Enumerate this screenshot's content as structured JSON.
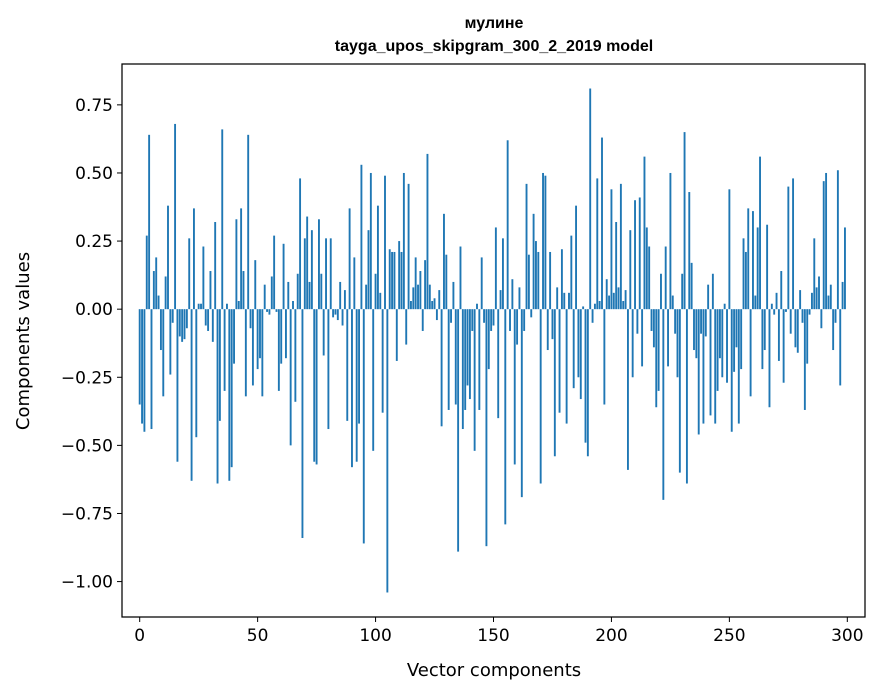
{
  "chart_data": {
    "type": "bar",
    "title": "мулине",
    "subtitle": "tayga_upos_skipgram_300_2_2019 model",
    "xlabel": "Vector components",
    "ylabel": "Components values",
    "xlim": [
      -7.5,
      307.5
    ],
    "ylim": [
      -1.13,
      0.9
    ],
    "x_ticks": [
      0,
      50,
      100,
      150,
      200,
      250,
      300
    ],
    "x_tick_labels": [
      "0",
      "50",
      "100",
      "150",
      "200",
      "250",
      "300"
    ],
    "y_ticks": [
      -1.0,
      -0.75,
      -0.5,
      -0.25,
      0.0,
      0.25,
      0.5,
      0.75
    ],
    "y_tick_labels": [
      "−1.00",
      "−0.75",
      "−0.50",
      "−0.25",
      "0.00",
      "0.25",
      "0.50",
      "0.75"
    ],
    "bar_color": "#1f77b4",
    "values": [
      -0.35,
      -0.42,
      -0.45,
      0.27,
      0.64,
      -0.44,
      0.14,
      0.19,
      0.05,
      -0.15,
      -0.32,
      0.12,
      0.38,
      -0.24,
      -0.05,
      0.68,
      -0.56,
      -0.1,
      -0.12,
      -0.11,
      -0.07,
      0.26,
      -0.63,
      0.37,
      -0.47,
      0.02,
      0.02,
      0.23,
      -0.06,
      -0.08,
      0.14,
      -0.12,
      0.32,
      -0.64,
      -0.41,
      0.66,
      -0.3,
      0.02,
      -0.63,
      -0.58,
      -0.2,
      0.33,
      0.03,
      0.37,
      0.14,
      -0.32,
      0.64,
      -0.07,
      -0.28,
      0.18,
      -0.22,
      -0.18,
      -0.32,
      0.09,
      -0.01,
      -0.02,
      0.12,
      0.27,
      -0.01,
      -0.3,
      -0.2,
      0.24,
      -0.18,
      0.1,
      -0.5,
      0.03,
      -0.34,
      0.13,
      0.48,
      -0.84,
      0.26,
      0.34,
      0.1,
      0.29,
      -0.56,
      -0.57,
      0.33,
      0.13,
      -0.17,
      0.26,
      -0.44,
      0.26,
      -0.03,
      -0.02,
      -0.04,
      0.1,
      -0.06,
      0.07,
      -0.41,
      0.37,
      -0.58,
      0.19,
      -0.56,
      -0.42,
      0.53,
      -0.86,
      0.09,
      0.29,
      0.5,
      -0.52,
      0.13,
      0.38,
      0.06,
      -0.38,
      0.49,
      -1.04,
      0.22,
      0.21,
      0.21,
      -0.19,
      0.25,
      0.21,
      0.5,
      -0.13,
      0.46,
      0.03,
      0.08,
      0.19,
      0.09,
      0.14,
      -0.08,
      0.18,
      0.57,
      0.09,
      0.03,
      0.04,
      -0.04,
      0.07,
      -0.43,
      0.35,
      0.2,
      -0.37,
      -0.05,
      0.1,
      -0.35,
      -0.89,
      0.23,
      -0.44,
      -0.37,
      -0.28,
      -0.33,
      -0.08,
      -0.52,
      0.02,
      -0.37,
      0.19,
      -0.05,
      -0.87,
      -0.22,
      -0.08,
      -0.06,
      0.3,
      -0.4,
      0.07,
      0.26,
      -0.79,
      0.62,
      -0.08,
      0.11,
      -0.57,
      -0.13,
      0.08,
      -0.69,
      -0.08,
      0.46,
      0.2,
      -0.03,
      0.35,
      0.25,
      0.21,
      -0.64,
      0.5,
      0.49,
      -0.15,
      0.21,
      -0.11,
      -0.54,
      0.08,
      -0.38,
      0.22,
      0.06,
      -0.42,
      0.06,
      0.27,
      -0.29,
      0.38,
      -0.25,
      -0.33,
      0.01,
      -0.49,
      -0.54,
      0.81,
      -0.05,
      0.02,
      0.48,
      0.03,
      0.63,
      -0.35,
      0.11,
      0.05,
      0.44,
      0.06,
      0.32,
      0.08,
      0.46,
      0.03,
      0.07,
      -0.59,
      0.29,
      -0.25,
      0.4,
      -0.09,
      0.41,
      -0.21,
      0.56,
      0.3,
      0.23,
      -0.08,
      -0.14,
      -0.36,
      -0.3,
      0.13,
      -0.7,
      0.23,
      -0.21,
      0.5,
      0.05,
      -0.09,
      -0.25,
      -0.6,
      0.13,
      0.65,
      -0.64,
      0.43,
      0.17,
      -0.15,
      -0.18,
      -0.46,
      -0.09,
      -0.42,
      -0.1,
      0.09,
      -0.39,
      0.13,
      -0.42,
      -0.3,
      -0.18,
      -0.25,
      0.02,
      -0.27,
      0.44,
      -0.45,
      -0.23,
      -0.14,
      -0.42,
      -0.22,
      0.26,
      0.21,
      0.37,
      -0.32,
      0.36,
      0.05,
      0.3,
      0.56,
      -0.22,
      -0.15,
      0.31,
      -0.36,
      0.02,
      -0.02,
      0.06,
      -0.19,
      0.14,
      -0.27,
      -0.01,
      0.45,
      -0.09,
      0.48,
      -0.14,
      -0.16,
      0.07,
      -0.05,
      -0.37,
      -0.2,
      -0.02,
      0.06,
      0.26,
      0.08,
      0.12,
      -0.07,
      0.47,
      0.5,
      0.05,
      0.09,
      -0.15,
      -0.05,
      0.51,
      -0.28,
      0.1,
      0.3
    ]
  }
}
